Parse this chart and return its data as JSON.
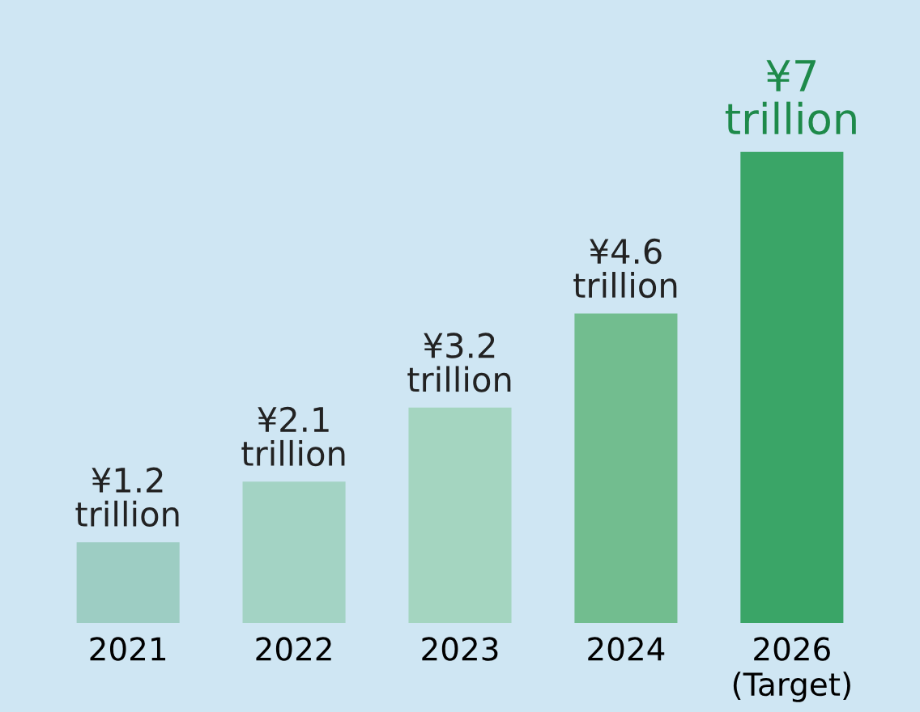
{
  "chart_data": {
    "type": "bar",
    "categories": [
      "2021",
      "2022",
      "2023",
      "2024",
      "2026\n(Target)"
    ],
    "values": [
      1.2,
      2.1,
      3.2,
      4.6,
      7
    ],
    "colors": [
      "#9dcdc3",
      "#a3d3c4",
      "#a4d5c0",
      "#72bd8f",
      "#3aa567"
    ],
    "data_labels": true,
    "value_labels": [
      "¥1.2\ntrillion",
      "¥2.1\ntrillion",
      "¥3.2\ntrillion",
      "¥4.6\ntrillion",
      "¥7\ntrillion"
    ],
    "grid": false,
    "legend": false
  }
}
